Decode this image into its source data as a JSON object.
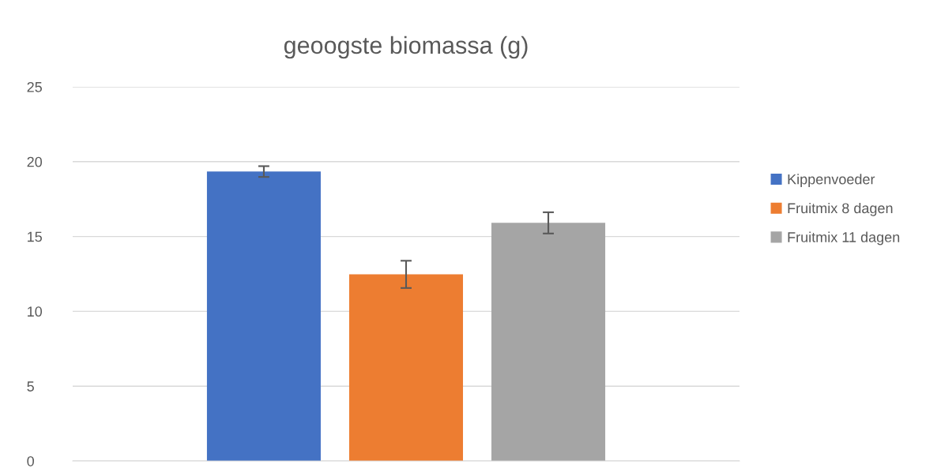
{
  "chart_data": {
    "type": "bar",
    "title": "geoogste biomassa (g)",
    "categories": [
      null
    ],
    "series": [
      {
        "name": "Kippenvoeder",
        "color": "#4472c4",
        "values": [
          19.34
        ],
        "errors": [
          0.36
        ]
      },
      {
        "name": "Fruitmix 8 dagen",
        "color": "#ed7d31",
        "values": [
          12.47
        ],
        "errors": [
          0.91
        ]
      },
      {
        "name": "Fruitmix 11 dagen",
        "color": "#a5a5a5",
        "values": [
          15.91
        ],
        "errors": [
          0.71
        ]
      }
    ],
    "ylim": [
      0,
      25
    ],
    "yticks": [
      0,
      5,
      10,
      15,
      20,
      25
    ],
    "grid": "y",
    "legend": "right"
  }
}
